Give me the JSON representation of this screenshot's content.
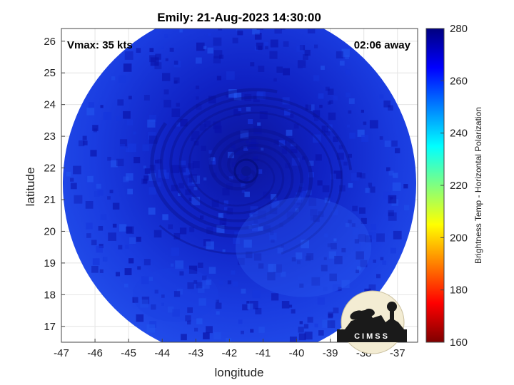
{
  "chart_data": {
    "type": "heatmap",
    "title": "Emily: 21-Aug-2023 14:30:00",
    "xlabel": "longitude",
    "ylabel": "latitude",
    "xlim": [
      -47,
      -36.4
    ],
    "ylim": [
      16.5,
      26.4
    ],
    "xticks": [
      -47,
      -46,
      -45,
      -44,
      -43,
      -42,
      -41,
      -40,
      -39,
      -38,
      -37
    ],
    "yticks": [
      17,
      18,
      19,
      20,
      21,
      22,
      23,
      24,
      25,
      26
    ],
    "grid": true,
    "annotations": {
      "top_left": "Vmax: 35 kts",
      "top_right": "02:06 away"
    },
    "swath_center": [
      -41.7,
      21.5
    ],
    "storm_center": [
      -41.5,
      21.9
    ],
    "colorbar": {
      "label": "Brightness Temp - Horizontal Polarization",
      "min": 160,
      "max": 280,
      "ticks": [
        160,
        180,
        200,
        220,
        240,
        260,
        280
      ],
      "colormap": "jet",
      "stops": [
        "#7f0000",
        "#ff0000",
        "#ff8000",
        "#ffff00",
        "#80ff80",
        "#00ffff",
        "#0080ff",
        "#0000ff",
        "#00007f"
      ]
    },
    "field_colors": {
      "dark": "#0a12a8",
      "mid": "#1636dd",
      "light": "#2255ee"
    },
    "logo_text": "CIMSS"
  }
}
